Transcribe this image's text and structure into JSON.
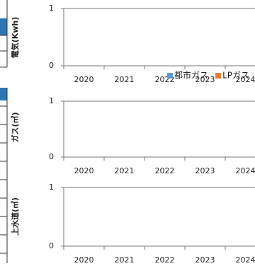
{
  "chart_data": [
    {
      "type": "bar",
      "y_label": "電気(Kwh)",
      "categories": [
        "2020",
        "2021",
        "2022",
        "2023",
        "2024"
      ],
      "series": [],
      "ylim": [
        0,
        1
      ],
      "yticks": [
        0,
        1
      ],
      "grid": true
    },
    {
      "type": "bar",
      "y_label": "ガス(㎥)",
      "categories": [
        "2020",
        "2021",
        "2022",
        "2023",
        "2024"
      ],
      "series": [
        {
          "name": "都市ガス",
          "color": "#5b9bd5",
          "values": [
            null,
            null,
            null,
            null,
            null
          ]
        },
        {
          "name": "LPガス",
          "color": "#ed7d31",
          "values": [
            null,
            null,
            null,
            null,
            null
          ]
        }
      ],
      "legend": "top-right",
      "ylim": [
        0,
        1
      ],
      "yticks": [
        0,
        1
      ],
      "grid": true
    },
    {
      "type": "bar",
      "y_label": "上水道(㎥)",
      "categories": [
        "2020",
        "2021",
        "2022",
        "2023",
        "2024"
      ],
      "series": [],
      "ylim": [
        0,
        1
      ],
      "yticks": [
        0,
        1
      ],
      "grid": true
    }
  ]
}
